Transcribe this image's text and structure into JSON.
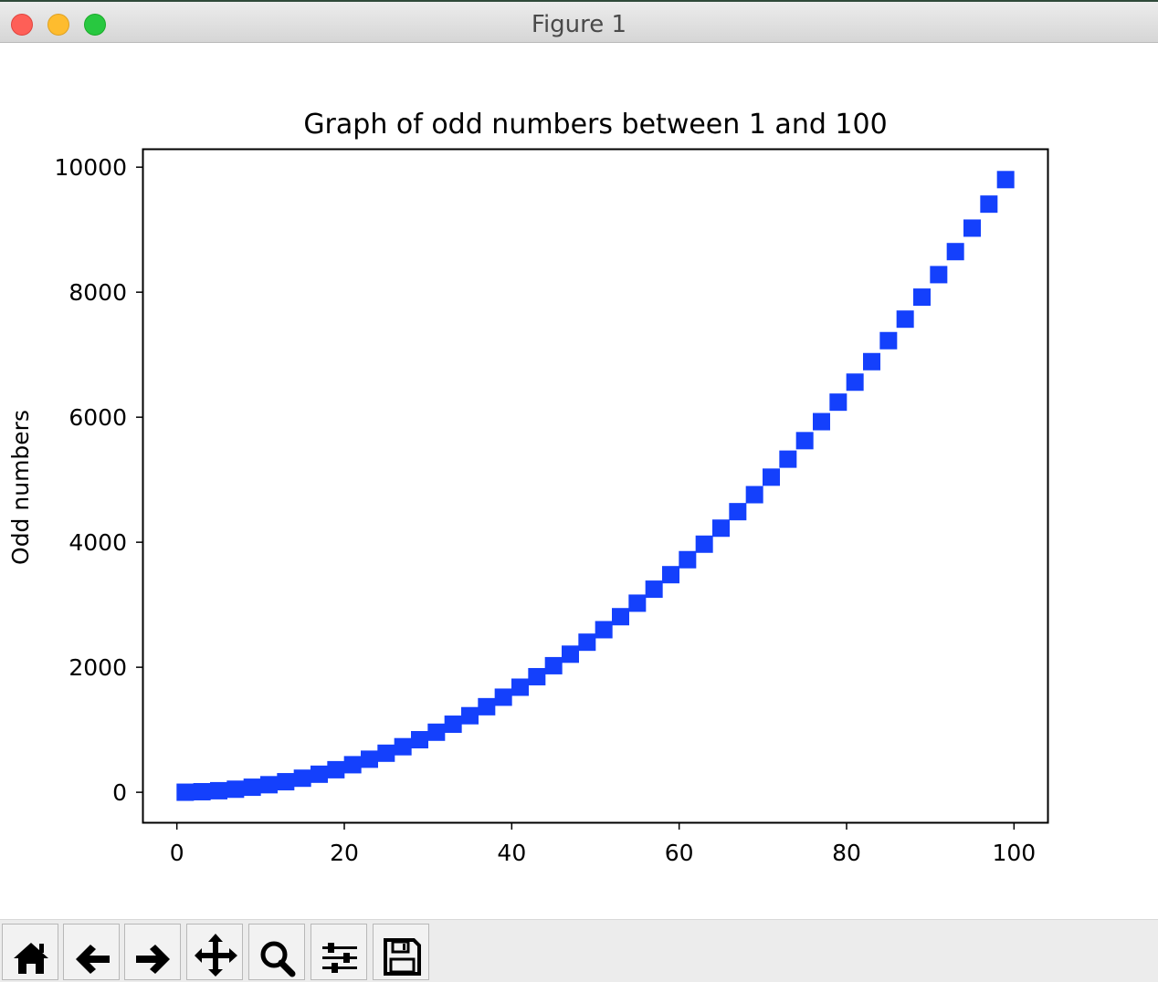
{
  "window": {
    "title": "Figure 1"
  },
  "toolbar": {
    "buttons": [
      {
        "name": "home-button",
        "icon": "home-icon"
      },
      {
        "name": "back-button",
        "icon": "arrow-left-icon"
      },
      {
        "name": "forward-button",
        "icon": "arrow-right-icon"
      },
      {
        "name": "pan-button",
        "icon": "move-icon"
      },
      {
        "name": "zoom-button",
        "icon": "magnifier-icon"
      },
      {
        "name": "configure-subplots-button",
        "icon": "sliders-icon"
      },
      {
        "name": "save-button",
        "icon": "floppy-disk-icon"
      }
    ]
  },
  "chart_data": {
    "type": "scatter",
    "title": "Graph of odd numbers between 1 and 100",
    "xlabel": "",
    "ylabel": "Odd numbers",
    "xlim": [
      -4,
      104
    ],
    "ylim": [
      -480,
      10280
    ],
    "xticks": [
      0,
      20,
      40,
      60,
      80,
      100
    ],
    "yticks": [
      0,
      2000,
      4000,
      6000,
      8000,
      10000
    ],
    "grid": false,
    "marker": "square",
    "color": "#1440fc",
    "x": [
      1,
      3,
      5,
      7,
      9,
      11,
      13,
      15,
      17,
      19,
      21,
      23,
      25,
      27,
      29,
      31,
      33,
      35,
      37,
      39,
      41,
      43,
      45,
      47,
      49,
      51,
      53,
      55,
      57,
      59,
      61,
      63,
      65,
      67,
      69,
      71,
      73,
      75,
      77,
      79,
      81,
      83,
      85,
      87,
      89,
      91,
      93,
      95,
      97,
      99
    ],
    "y": [
      1,
      9,
      25,
      49,
      81,
      121,
      169,
      225,
      289,
      361,
      441,
      529,
      625,
      729,
      841,
      961,
      1089,
      1225,
      1369,
      1521,
      1681,
      1849,
      2025,
      2209,
      2401,
      2601,
      2809,
      3025,
      3249,
      3481,
      3721,
      3969,
      4225,
      4489,
      4761,
      5041,
      5329,
      5625,
      5929,
      6241,
      6561,
      6889,
      7225,
      7569,
      7921,
      8281,
      8649,
      9025,
      9409,
      9801
    ]
  }
}
